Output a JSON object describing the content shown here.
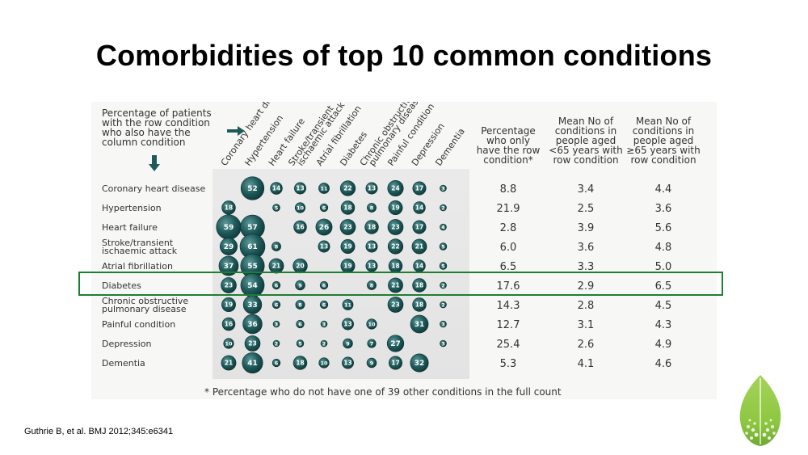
{
  "slide": {
    "title": "Comorbidities of top 10 common conditions",
    "citation": "Guthrie B, et al. BMJ 2012;345:e6341"
  },
  "colors": {
    "bubble": "#1f5a5a",
    "highlight": "#1e7e34",
    "leaf": "#8cc63f",
    "text": "#333333"
  },
  "chart_data": {
    "type": "table",
    "title": "",
    "explanation_lines": [
      "Percentage of patients",
      "with the row condition",
      "who also have the",
      "column condition"
    ],
    "columns": [
      "Coronary heart disease",
      "Hypertension",
      "Heart failure",
      "Stroke/transient ischaemic attack",
      "Atrial fibrillation",
      "Diabetes",
      "Chronic obstructive pulmonary disease",
      "Painful condition",
      "Depression",
      "Dementia"
    ],
    "column_label_lines": [
      [
        "Coronary heart disease"
      ],
      [
        "Hypertension"
      ],
      [
        "Heart failure"
      ],
      [
        "Stroke/transient",
        "ischaemic attack"
      ],
      [
        "Atrial fibrillation"
      ],
      [
        "Diabetes"
      ],
      [
        "Chronic obstructive",
        "pulmonary disease"
      ],
      [
        "Painful condition"
      ],
      [
        "Depression"
      ],
      [
        "Dementia"
      ]
    ],
    "rows": [
      "Coronary heart disease",
      "Hypertension",
      "Heart failure",
      "Stroke/transient ischaemic attack",
      "Atrial fibrillation",
      "Diabetes",
      "Chronic obstructive pulmonary disease",
      "Painful condition",
      "Depression",
      "Dementia"
    ],
    "row_label_lines": [
      [
        "Coronary heart disease"
      ],
      [
        "Hypertension"
      ],
      [
        "Heart failure"
      ],
      [
        "Stroke/transient",
        "ischaemic attack"
      ],
      [
        "Atrial fibrillation"
      ],
      [
        "Diabetes"
      ],
      [
        "Chronic obstructive",
        "pulmonary disease"
      ],
      [
        "Painful condition"
      ],
      [
        "Depression"
      ],
      [
        "Dementia"
      ]
    ],
    "matrix": [
      [
        null,
        52,
        14,
        13,
        11,
        22,
        13,
        24,
        17,
        3
      ],
      [
        18,
        null,
        5,
        10,
        6,
        18,
        8,
        19,
        14,
        2
      ],
      [
        59,
        57,
        null,
        16,
        26,
        23,
        18,
        23,
        17,
        4
      ],
      [
        29,
        61,
        8,
        null,
        13,
        19,
        13,
        22,
        21,
        5
      ],
      [
        37,
        55,
        21,
        20,
        null,
        19,
        13,
        18,
        14,
        5
      ],
      [
        23,
        54,
        6,
        9,
        6,
        null,
        8,
        21,
        18,
        2
      ],
      [
        19,
        33,
        6,
        8,
        6,
        11,
        null,
        23,
        18,
        2
      ],
      [
        16,
        36,
        3,
        6,
        3,
        13,
        10,
        null,
        31,
        3
      ],
      [
        10,
        23,
        2,
        5,
        2,
        9,
        7,
        27,
        null,
        3
      ],
      [
        21,
        41,
        6,
        18,
        10,
        13,
        9,
        17,
        32,
        null
      ]
    ],
    "stat_headers": [
      [
        "Percentage",
        "who only",
        "have the row",
        "condition*"
      ],
      [
        "Mean No of",
        "conditions in",
        "people aged",
        "<65 years with",
        "row condition"
      ],
      [
        "Mean No of",
        "conditions in",
        "people aged",
        "≥65 years with",
        "row condition"
      ]
    ],
    "stats": [
      [
        "8.8",
        "3.4",
        "4.4"
      ],
      [
        "21.9",
        "2.5",
        "3.6"
      ],
      [
        "2.8",
        "3.9",
        "5.6"
      ],
      [
        "6.0",
        "3.6",
        "4.8"
      ],
      [
        "6.5",
        "3.3",
        "5.0"
      ],
      [
        "17.6",
        "2.9",
        "6.5"
      ],
      [
        "14.3",
        "2.8",
        "4.5"
      ],
      [
        "12.7",
        "3.1",
        "4.3"
      ],
      [
        "25.4",
        "2.6",
        "4.9"
      ],
      [
        "5.3",
        "4.1",
        "4.6"
      ]
    ],
    "highlighted_row": "Diabetes",
    "footnote": "* Percentage who do not have one of 39 other conditions in the full count"
  }
}
